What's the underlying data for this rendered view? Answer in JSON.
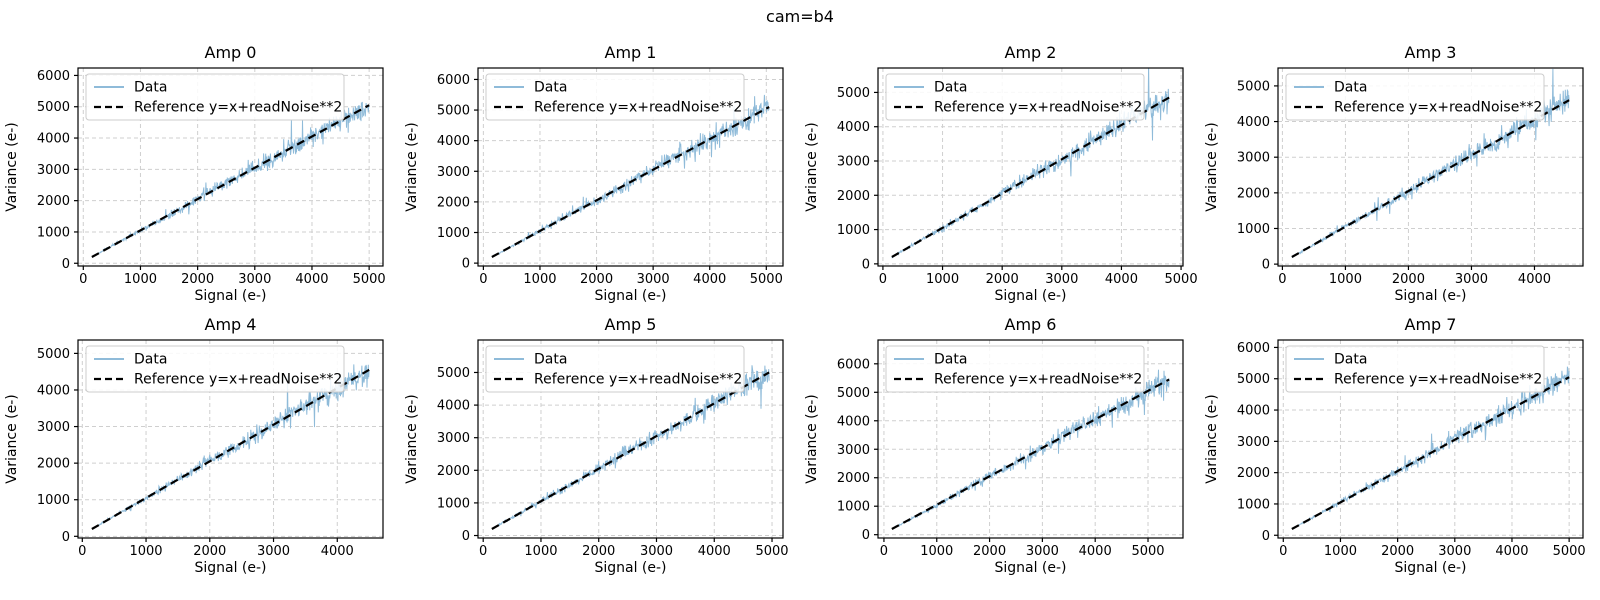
{
  "figure": {
    "title": "cam=b4"
  },
  "colors": {
    "data_line": "#8fbbd9",
    "reference_line": "#000000",
    "grid": "#cfcfcf",
    "spine": "#000000",
    "legend_border": "#cccccc",
    "background": "#ffffff"
  },
  "legend": {
    "data_label": "Data",
    "reference_label": "Reference y=x+readNoise**2",
    "position": "upper left"
  },
  "chart_data": [
    {
      "type": "line",
      "title": "Amp 0",
      "xlabel": "Signal (e-)",
      "ylabel": "Variance (e-)",
      "grid": true,
      "legend_position": "upper left",
      "x_ticks": [
        0,
        1000,
        2000,
        3000,
        4000,
        5000
      ],
      "y_ticks": [
        0,
        1000,
        2000,
        3000,
        4000,
        5000,
        6000
      ],
      "series": [
        {
          "name": "Data",
          "style": "noisy-line",
          "x_start": 150,
          "x_end": 5000,
          "slope": 1.0,
          "intercept": 50,
          "noise_frac": 0.038,
          "n_points": 650,
          "seed": 3
        },
        {
          "name": "Reference y=x+readNoise**2",
          "style": "dashed-line",
          "slope": 1.0,
          "intercept": 50
        }
      ],
      "data_y_max": 5950
    },
    {
      "type": "line",
      "title": "Amp 1",
      "xlabel": "Signal (e-)",
      "ylabel": "Variance (e-)",
      "grid": true,
      "legend_position": "upper left",
      "x_ticks": [
        0,
        1000,
        2000,
        3000,
        4000,
        5000
      ],
      "y_ticks": [
        0,
        1000,
        2000,
        3000,
        4000,
        5000,
        6000
      ],
      "series": [
        {
          "name": "Data",
          "style": "noisy-line",
          "x_start": 150,
          "x_end": 5050,
          "slope": 1.0,
          "intercept": 50,
          "noise_frac": 0.038,
          "n_points": 650,
          "seed": 7
        },
        {
          "name": "Reference y=x+readNoise**2",
          "style": "dashed-line",
          "slope": 1.0,
          "intercept": 50
        }
      ],
      "data_y_max": 6080
    },
    {
      "type": "line",
      "title": "Amp 2",
      "xlabel": "Signal (e-)",
      "ylabel": "Variance (e-)",
      "grid": true,
      "legend_position": "upper left",
      "x_ticks": [
        0,
        1000,
        2000,
        3000,
        4000,
        5000
      ],
      "y_ticks": [
        0,
        1000,
        2000,
        3000,
        4000,
        5000
      ],
      "series": [
        {
          "name": "Data",
          "style": "noisy-line",
          "x_start": 150,
          "x_end": 4800,
          "slope": 1.0,
          "intercept": 50,
          "noise_frac": 0.038,
          "n_points": 650,
          "seed": 11
        },
        {
          "name": "Reference y=x+readNoise**2",
          "style": "dashed-line",
          "slope": 1.0,
          "intercept": 50
        }
      ],
      "data_y_max": 5450
    },
    {
      "type": "line",
      "title": "Amp 3",
      "xlabel": "Signal (e-)",
      "ylabel": "Variance (e-)",
      "grid": true,
      "legend_position": "upper left",
      "x_ticks": [
        0,
        1000,
        2000,
        3000,
        4000
      ],
      "y_ticks": [
        0,
        1000,
        2000,
        3000,
        4000,
        5000
      ],
      "series": [
        {
          "name": "Data",
          "style": "noisy-line",
          "x_start": 150,
          "x_end": 4550,
          "slope": 1.0,
          "intercept": 50,
          "noise_frac": 0.038,
          "n_points": 650,
          "seed": 13
        },
        {
          "name": "Reference y=x+readNoise**2",
          "style": "dashed-line",
          "slope": 1.0,
          "intercept": 50
        }
      ],
      "data_y_max": 5250
    },
    {
      "type": "line",
      "title": "Amp 4",
      "xlabel": "Signal (e-)",
      "ylabel": "Variance (e-)",
      "grid": true,
      "legend_position": "upper left",
      "x_ticks": [
        0,
        1000,
        2000,
        3000,
        4000
      ],
      "y_ticks": [
        0,
        1000,
        2000,
        3000,
        4000,
        5000
      ],
      "series": [
        {
          "name": "Data",
          "style": "noisy-line",
          "x_start": 150,
          "x_end": 4500,
          "slope": 1.0,
          "intercept": 50,
          "noise_frac": 0.038,
          "n_points": 650,
          "seed": 17
        },
        {
          "name": "Reference y=x+readNoise**2",
          "style": "dashed-line",
          "slope": 1.0,
          "intercept": 50
        }
      ],
      "data_y_max": 5120
    },
    {
      "type": "line",
      "title": "Amp 5",
      "xlabel": "Signal (e-)",
      "ylabel": "Variance (e-)",
      "grid": true,
      "legend_position": "upper left",
      "x_ticks": [
        0,
        1000,
        2000,
        3000,
        4000,
        5000
      ],
      "y_ticks": [
        0,
        1000,
        2000,
        3000,
        4000,
        5000
      ],
      "series": [
        {
          "name": "Data",
          "style": "noisy-line",
          "x_start": 150,
          "x_end": 4950,
          "slope": 1.0,
          "intercept": 50,
          "noise_frac": 0.038,
          "n_points": 650,
          "seed": 19
        },
        {
          "name": "Reference y=x+readNoise**2",
          "style": "dashed-line",
          "slope": 1.0,
          "intercept": 50
        }
      ],
      "data_y_max": 5720
    },
    {
      "type": "line",
      "title": "Amp 6",
      "xlabel": "Signal (e-)",
      "ylabel": "Variance (e-)",
      "grid": true,
      "legend_position": "upper left",
      "x_ticks": [
        0,
        1000,
        2000,
        3000,
        4000,
        5000
      ],
      "y_ticks": [
        0,
        1000,
        2000,
        3000,
        4000,
        5000,
        6000
      ],
      "series": [
        {
          "name": "Data",
          "style": "noisy-line",
          "x_start": 150,
          "x_end": 5400,
          "slope": 1.0,
          "intercept": 50,
          "noise_frac": 0.038,
          "n_points": 650,
          "seed": 23
        },
        {
          "name": "Reference y=x+readNoise**2",
          "style": "dashed-line",
          "slope": 1.0,
          "intercept": 50
        }
      ],
      "data_y_max": 6520
    },
    {
      "type": "line",
      "title": "Amp 7",
      "xlabel": "Signal (e-)",
      "ylabel": "Variance (e-)",
      "grid": true,
      "legend_position": "upper left",
      "x_ticks": [
        0,
        1000,
        2000,
        3000,
        4000,
        5000
      ],
      "y_ticks": [
        0,
        1000,
        2000,
        3000,
        4000,
        5000,
        6000
      ],
      "series": [
        {
          "name": "Data",
          "style": "noisy-line",
          "x_start": 150,
          "x_end": 5000,
          "slope": 1.0,
          "intercept": 50,
          "noise_frac": 0.038,
          "n_points": 650,
          "seed": 29
        },
        {
          "name": "Reference y=x+readNoise**2",
          "style": "dashed-line",
          "slope": 1.0,
          "intercept": 50
        }
      ],
      "data_y_max": 5950
    }
  ]
}
